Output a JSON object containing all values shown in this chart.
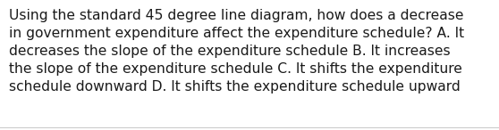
{
  "lines": [
    "Using the standard 45 degree line diagram, how does a decrease",
    "in government expenditure affect the expenditure schedule? A. It",
    "decreases the slope of the expenditure schedule B. It increases",
    "the slope of the expenditure schedule C. It shifts the expenditure",
    "schedule downward D. It shifts the expenditure schedule upward"
  ],
  "background_color": "#ffffff",
  "text_color": "#1a1a1a",
  "font_size": 11.2,
  "border_color": "#cccccc",
  "fig_width": 5.58,
  "fig_height": 1.46,
  "dpi": 100
}
